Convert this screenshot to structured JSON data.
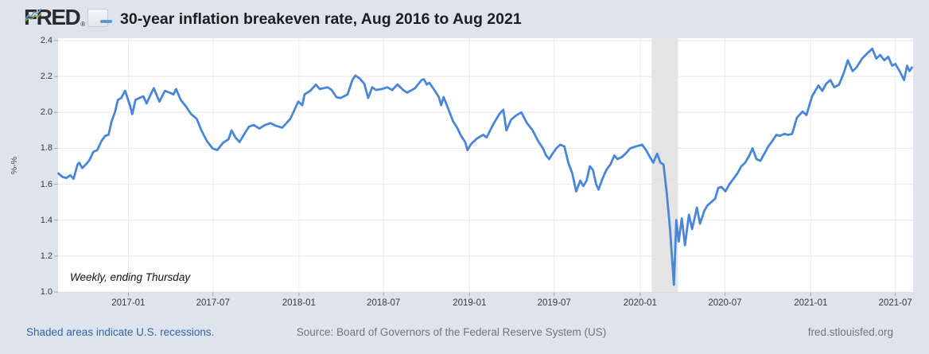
{
  "header": {
    "logo_text": "FRED",
    "registered_mark": "®",
    "title": "30-year inflation breakeven rate, Aug 2016 to Aug 2021"
  },
  "chart_data": {
    "type": "line",
    "title": "30-year inflation breakeven rate, Aug 2016 to Aug 2021",
    "frequency_note": "Weekly, ending Thursday",
    "ylabel": "%-%",
    "xlim": [
      2016.588,
      2021.6
    ],
    "ylim": [
      1.0,
      2.4
    ],
    "grid": true,
    "legend_position": "top-left-dash",
    "y_ticks": [
      "1.0",
      "1.2",
      "1.4",
      "1.6",
      "1.8",
      "2.0",
      "2.2",
      "2.4"
    ],
    "x_ticks": [
      {
        "t": 2017.0,
        "label": "2017-01"
      },
      {
        "t": 2017.496,
        "label": "2017-07"
      },
      {
        "t": 2018.0,
        "label": "2018-01"
      },
      {
        "t": 2018.496,
        "label": "2018-07"
      },
      {
        "t": 2019.0,
        "label": "2019-01"
      },
      {
        "t": 2019.496,
        "label": "2019-07"
      },
      {
        "t": 2020.0,
        "label": "2020-01"
      },
      {
        "t": 2020.497,
        "label": "2020-07"
      },
      {
        "t": 2021.0,
        "label": "2021-01"
      },
      {
        "t": 2021.496,
        "label": "2021-07"
      }
    ],
    "recession_bands": [
      {
        "start_t": 2020.068,
        "end_t": 2020.222,
        "start_label": "2020-02",
        "end_label": "2020-04"
      }
    ],
    "series": [
      {
        "name": "30-year inflation breakeven rate",
        "color": "#4a86d8",
        "points": [
          [
            2016.59,
            1.66
          ],
          [
            2016.615,
            1.64
          ],
          [
            2016.637,
            1.635
          ],
          [
            2016.66,
            1.65
          ],
          [
            2016.679,
            1.63
          ],
          [
            2016.702,
            1.71
          ],
          [
            2016.712,
            1.72
          ],
          [
            2016.73,
            1.69
          ],
          [
            2016.751,
            1.71
          ],
          [
            2016.772,
            1.735
          ],
          [
            2016.795,
            1.78
          ],
          [
            2016.818,
            1.79
          ],
          [
            2016.842,
            1.84
          ],
          [
            2016.865,
            1.87
          ],
          [
            2016.884,
            1.875
          ],
          [
            2016.902,
            1.95
          ],
          [
            2016.921,
            2.0
          ],
          [
            2016.939,
            2.07
          ],
          [
            2016.958,
            2.08
          ],
          [
            2016.981,
            2.12
          ],
          [
            2017.009,
            2.04
          ],
          [
            2017.023,
            1.99
          ],
          [
            2017.042,
            2.07
          ],
          [
            2017.065,
            2.08
          ],
          [
            2017.088,
            2.09
          ],
          [
            2017.107,
            2.05
          ],
          [
            2017.126,
            2.09
          ],
          [
            2017.149,
            2.135
          ],
          [
            2017.182,
            2.06
          ],
          [
            2017.214,
            2.12
          ],
          [
            2017.242,
            2.11
          ],
          [
            2017.265,
            2.1
          ],
          [
            2017.28,
            2.13
          ],
          [
            2017.307,
            2.07
          ],
          [
            2017.34,
            2.03
          ],
          [
            2017.368,
            1.99
          ],
          [
            2017.4,
            1.965
          ],
          [
            2017.428,
            1.9
          ],
          [
            2017.461,
            1.84
          ],
          [
            2017.493,
            1.8
          ],
          [
            2017.521,
            1.79
          ],
          [
            2017.554,
            1.83
          ],
          [
            2017.587,
            1.85
          ],
          [
            2017.605,
            1.9
          ],
          [
            2017.628,
            1.86
          ],
          [
            2017.652,
            1.835
          ],
          [
            2017.68,
            1.88
          ],
          [
            2017.707,
            1.92
          ],
          [
            2017.735,
            1.93
          ],
          [
            2017.768,
            1.91
          ],
          [
            2017.801,
            1.93
          ],
          [
            2017.833,
            1.94
          ],
          [
            2017.866,
            1.925
          ],
          [
            2017.903,
            1.915
          ],
          [
            2017.95,
            1.965
          ],
          [
            2017.996,
            2.06
          ],
          [
            2018.02,
            2.04
          ],
          [
            2018.033,
            2.1
          ],
          [
            2018.066,
            2.12
          ],
          [
            2018.099,
            2.155
          ],
          [
            2018.122,
            2.13
          ],
          [
            2018.168,
            2.14
          ],
          [
            2018.192,
            2.125
          ],
          [
            2018.22,
            2.085
          ],
          [
            2018.243,
            2.08
          ],
          [
            2018.285,
            2.1
          ],
          [
            2018.313,
            2.18
          ],
          [
            2018.331,
            2.205
          ],
          [
            2018.355,
            2.19
          ],
          [
            2018.383,
            2.16
          ],
          [
            2018.406,
            2.08
          ],
          [
            2018.429,
            2.14
          ],
          [
            2018.452,
            2.125
          ],
          [
            2018.485,
            2.13
          ],
          [
            2018.518,
            2.14
          ],
          [
            2018.546,
            2.125
          ],
          [
            2018.578,
            2.155
          ],
          [
            2018.611,
            2.125
          ],
          [
            2018.634,
            2.11
          ],
          [
            2018.681,
            2.135
          ],
          [
            2018.718,
            2.18
          ],
          [
            2018.732,
            2.185
          ],
          [
            2018.75,
            2.155
          ],
          [
            2018.764,
            2.165
          ],
          [
            2018.797,
            2.12
          ],
          [
            2018.82,
            2.085
          ],
          [
            2018.834,
            2.04
          ],
          [
            2018.848,
            2.085
          ],
          [
            2018.871,
            2.03
          ],
          [
            2018.904,
            1.95
          ],
          [
            2018.927,
            1.915
          ],
          [
            2018.95,
            1.87
          ],
          [
            2018.974,
            1.835
          ],
          [
            2018.988,
            1.79
          ],
          [
            2019.01,
            1.825
          ],
          [
            2019.044,
            1.855
          ],
          [
            2019.081,
            1.875
          ],
          [
            2019.1,
            1.86
          ],
          [
            2019.137,
            1.93
          ],
          [
            2019.174,
            1.99
          ],
          [
            2019.198,
            2.015
          ],
          [
            2019.216,
            1.9
          ],
          [
            2019.244,
            1.96
          ],
          [
            2019.276,
            1.985
          ],
          [
            2019.304,
            2.0
          ],
          [
            2019.337,
            1.94
          ],
          [
            2019.37,
            1.9
          ],
          [
            2019.402,
            1.84
          ],
          [
            2019.43,
            1.8
          ],
          [
            2019.449,
            1.76
          ],
          [
            2019.467,
            1.74
          ],
          [
            2019.486,
            1.77
          ],
          [
            2019.509,
            1.8
          ],
          [
            2019.532,
            1.82
          ],
          [
            2019.556,
            1.81
          ],
          [
            2019.579,
            1.72
          ],
          [
            2019.602,
            1.66
          ],
          [
            2019.625,
            1.56
          ],
          [
            2019.649,
            1.62
          ],
          [
            2019.667,
            1.59
          ],
          [
            2019.686,
            1.62
          ],
          [
            2019.705,
            1.7
          ],
          [
            2019.723,
            1.68
          ],
          [
            2019.742,
            1.6
          ],
          [
            2019.756,
            1.57
          ],
          [
            2019.779,
            1.63
          ],
          [
            2019.802,
            1.68
          ],
          [
            2019.826,
            1.71
          ],
          [
            2019.849,
            1.76
          ],
          [
            2019.867,
            1.74
          ],
          [
            2019.891,
            1.75
          ],
          [
            2019.914,
            1.77
          ],
          [
            2019.942,
            1.8
          ],
          [
            2019.974,
            1.81
          ],
          [
            2020.012,
            1.82
          ],
          [
            2020.035,
            1.79
          ],
          [
            2020.058,
            1.75
          ],
          [
            2020.077,
            1.72
          ],
          [
            2020.1,
            1.77
          ],
          [
            2020.119,
            1.72
          ],
          [
            2020.137,
            1.71
          ],
          [
            2020.156,
            1.55
          ],
          [
            2020.175,
            1.35
          ],
          [
            2020.189,
            1.16
          ],
          [
            2020.198,
            1.04
          ],
          [
            2020.212,
            1.4
          ],
          [
            2020.226,
            1.28
          ],
          [
            2020.244,
            1.41
          ],
          [
            2020.263,
            1.26
          ],
          [
            2020.286,
            1.43
          ],
          [
            2020.305,
            1.35
          ],
          [
            2020.333,
            1.47
          ],
          [
            2020.351,
            1.38
          ],
          [
            2020.375,
            1.45
          ],
          [
            2020.393,
            1.48
          ],
          [
            2020.417,
            1.5
          ],
          [
            2020.44,
            1.52
          ],
          [
            2020.458,
            1.58
          ],
          [
            2020.477,
            1.585
          ],
          [
            2020.5,
            1.56
          ],
          [
            2020.523,
            1.6
          ],
          [
            2020.547,
            1.63
          ],
          [
            2020.57,
            1.66
          ],
          [
            2020.593,
            1.7
          ],
          [
            2020.616,
            1.72
          ],
          [
            2020.64,
            1.76
          ],
          [
            2020.658,
            1.8
          ],
          [
            2020.682,
            1.74
          ],
          [
            2020.705,
            1.73
          ],
          [
            2020.728,
            1.77
          ],
          [
            2020.751,
            1.81
          ],
          [
            2020.775,
            1.84
          ],
          [
            2020.798,
            1.875
          ],
          [
            2020.821,
            1.87
          ],
          [
            2020.845,
            1.88
          ],
          [
            2020.868,
            1.875
          ],
          [
            2020.891,
            1.88
          ],
          [
            2020.919,
            1.97
          ],
          [
            2020.952,
            2.005
          ],
          [
            2020.975,
            1.985
          ],
          [
            2021.008,
            2.09
          ],
          [
            2021.045,
            2.15
          ],
          [
            2021.068,
            2.12
          ],
          [
            2021.091,
            2.16
          ],
          [
            2021.115,
            2.18
          ],
          [
            2021.138,
            2.14
          ],
          [
            2021.166,
            2.155
          ],
          [
            2021.194,
            2.22
          ],
          [
            2021.217,
            2.29
          ],
          [
            2021.245,
            2.23
          ],
          [
            2021.268,
            2.25
          ],
          [
            2021.301,
            2.3
          ],
          [
            2021.333,
            2.33
          ],
          [
            2021.361,
            2.355
          ],
          [
            2021.384,
            2.3
          ],
          [
            2021.407,
            2.32
          ],
          [
            2021.431,
            2.29
          ],
          [
            2021.454,
            2.31
          ],
          [
            2021.477,
            2.26
          ],
          [
            2021.496,
            2.27
          ],
          [
            2021.524,
            2.225
          ],
          [
            2021.547,
            2.18
          ],
          [
            2021.565,
            2.26
          ],
          [
            2021.579,
            2.23
          ],
          [
            2021.593,
            2.25
          ]
        ]
      }
    ]
  },
  "footer": {
    "recession_note": "Shaded areas indicate U.S. recessions.",
    "source": "Source: Board of Governors of the Federal Reserve System (US)",
    "site": "fred.stlouisfed.org"
  },
  "colors": {
    "background": "#dde4ee",
    "plot_background": "#ffffff",
    "line": "#4a86d8",
    "recession_band": "#e4e4e4",
    "h_gridline": "#e8e8e8",
    "v_gridline": "#e8ebf1",
    "tick_mark": "#9aa6b5",
    "link_blue": "#3465a4",
    "muted_text": "#6e757d"
  }
}
